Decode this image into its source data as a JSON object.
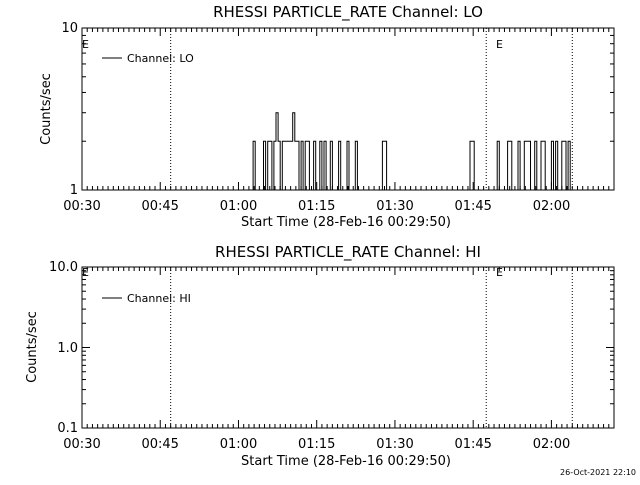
{
  "charts": [
    {
      "title": "RHESSI PARTICLE_RATE Channel: LO",
      "ylabel": "Counts/sec",
      "xlabel": "Start Time (28-Feb-16 00:29:50)",
      "legend": "Channel: LO",
      "x_ticks": [
        "00:30",
        "00:45",
        "01:00",
        "01:15",
        "01:30",
        "01:45",
        "02:00"
      ],
      "y_ticks": [
        "1",
        "10"
      ],
      "flag_label": "E"
    },
    {
      "title": "RHESSI PARTICLE_RATE Channel: HI",
      "ylabel": "Counts/sec",
      "xlabel": "Start Time (28-Feb-16 00:29:50)",
      "legend": "Channel: HI",
      "x_ticks": [
        "00:30",
        "00:45",
        "01:00",
        "01:15",
        "01:30",
        "01:45",
        "02:00"
      ],
      "y_ticks": [
        "0.1",
        "1.0",
        "10.0"
      ],
      "flag_label": "E"
    }
  ],
  "timestamp": "26-Oct-2021 22:10",
  "chart_data": [
    {
      "type": "line",
      "title": "RHESSI PARTICLE_RATE Channel: LO",
      "xlabel": "Start Time (28-Feb-16 00:29:50)",
      "ylabel": "Counts/sec",
      "x_unit": "minutes after 00:30",
      "xlim": [
        0,
        102
      ],
      "ylim": [
        1,
        10
      ],
      "yscale": "log",
      "grid": false,
      "legend_position": "top-left",
      "vlines_dotted": [
        17,
        77.5,
        94
      ],
      "series": [
        {
          "name": "Channel: LO",
          "x": [
            0,
            32.4,
            32.8,
            33.2,
            33.6,
            34.4,
            34.8,
            35.2,
            35.6,
            36.0,
            36.4,
            36.8,
            37.2,
            37.6,
            38.0,
            38.4,
            38.8,
            39.2,
            39.6,
            40.0,
            40.4,
            40.8,
            41.2,
            41.6,
            42.0,
            42.4,
            42.8,
            43.2,
            43.6,
            44.0,
            44.4,
            44.8,
            45.2,
            45.6,
            46.0,
            46.4,
            46.8,
            47.2,
            47.6,
            48.0,
            48.4,
            48.8,
            49.2,
            49.6,
            50.0,
            50.4,
            50.8,
            51.2,
            51.6,
            52.0,
            52.4,
            52.8,
            57.2,
            57.6,
            58.0,
            58.4,
            74.0,
            74.4,
            74.8,
            75.2,
            79.2,
            79.6,
            80.0,
            80.4,
            80.8,
            81.2,
            81.6,
            82.0,
            82.4,
            82.8,
            83.2,
            83.6,
            84.0,
            84.4,
            84.8,
            85.2,
            85.6,
            86.0,
            86.4,
            86.8,
            87.2,
            87.6,
            88.0,
            88.4,
            88.8,
            89.2,
            89.6,
            90.0,
            90.4,
            90.8,
            91.2,
            91.6,
            92.0,
            92.4,
            92.8,
            93.2,
            93.6,
            94.0
          ],
          "y": [
            1,
            1,
            2,
            1,
            1,
            1,
            2,
            1,
            2,
            2,
            1,
            2,
            3,
            2,
            1,
            2,
            2,
            2,
            2,
            2,
            3,
            2,
            2,
            1,
            2,
            1,
            2,
            2,
            1,
            1,
            2,
            1,
            1,
            2,
            1,
            2,
            1,
            1,
            2,
            1,
            1,
            1,
            2,
            1,
            1,
            1,
            2,
            1,
            1,
            1,
            2,
            1,
            1,
            2,
            2,
            1,
            1,
            2,
            2,
            1,
            1,
            2,
            1,
            1,
            1,
            1,
            2,
            2,
            1,
            1,
            1,
            2,
            1,
            1,
            2,
            2,
            2,
            1,
            1,
            2,
            1,
            1,
            2,
            2,
            1,
            1,
            1,
            2,
            1,
            2,
            1,
            1,
            2,
            2,
            1,
            2,
            1,
            1
          ]
        }
      ]
    },
    {
      "type": "line",
      "title": "RHESSI PARTICLE_RATE Channel: HI",
      "xlabel": "Start Time (28-Feb-16 00:29:50)",
      "ylabel": "Counts/sec",
      "x_unit": "minutes after 00:30",
      "xlim": [
        0,
        102
      ],
      "ylim": [
        0.1,
        10
      ],
      "yscale": "log",
      "grid": false,
      "legend_position": "top-left",
      "vlines_dotted": [
        17,
        77.5,
        94
      ],
      "series": [
        {
          "name": "Channel: HI",
          "x": [],
          "y": []
        }
      ]
    }
  ]
}
